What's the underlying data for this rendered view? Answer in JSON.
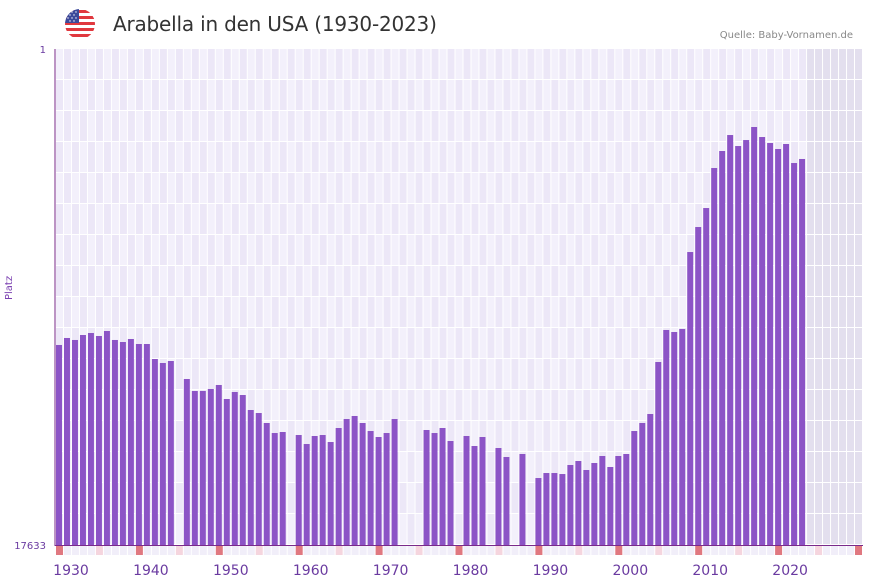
{
  "header": {
    "title": "Arabella in den USA (1930-2023)",
    "source": "Quelle: Baby-Vornamen.de",
    "flag_icon": "us-flag-icon"
  },
  "colors": {
    "bar": "#8c54c6",
    "axis": "#7a2a8a",
    "decade_marker": "#e07880",
    "half_decade_marker": "#f5d5de",
    "grid_bg_a": "#f3f0fb",
    "grid_bg_b": "#ece7f7",
    "future_zone": "#e3dfee"
  },
  "chart_data": {
    "type": "bar",
    "title": "Arabella in den USA (1930-2023)",
    "xlabel": "",
    "ylabel": "Platz",
    "y_inverted": true,
    "ylim": [
      1,
      17633
    ],
    "y_ticks": [
      "1",
      "17633"
    ],
    "x_ticks": [
      "1930",
      "1940",
      "1950",
      "1960",
      "1970",
      "1980",
      "1990",
      "2000",
      "2010",
      "2020"
    ],
    "x_range": [
      1930,
      2030
    ],
    "grid": true,
    "legend": "none",
    "x": [
      1930,
      1931,
      1932,
      1933,
      1934,
      1935,
      1936,
      1937,
      1938,
      1939,
      1940,
      1941,
      1942,
      1943,
      1944,
      1945,
      1946,
      1947,
      1948,
      1949,
      1950,
      1951,
      1952,
      1953,
      1954,
      1955,
      1956,
      1957,
      1958,
      1959,
      1960,
      1961,
      1962,
      1963,
      1964,
      1965,
      1966,
      1967,
      1968,
      1969,
      1970,
      1971,
      1972,
      1973,
      1974,
      1975,
      1976,
      1977,
      1978,
      1979,
      1980,
      1981,
      1982,
      1983,
      1984,
      1985,
      1986,
      1987,
      1988,
      1989,
      1990,
      1991,
      1992,
      1993,
      1994,
      1995,
      1996,
      1997,
      1998,
      1999,
      2000,
      2001,
      2002,
      2003,
      2004,
      2005,
      2006,
      2007,
      2008,
      2009,
      2010,
      2011,
      2012,
      2013,
      2014,
      2015,
      2016,
      2017,
      2018,
      2019,
      2020,
      2021,
      2022,
      2023
    ],
    "values": [
      10523,
      10274,
      10345,
      10168,
      10097,
      10203,
      10026,
      10345,
      10417,
      10310,
      10488,
      10488,
      11021,
      11163,
      11092,
      null,
      11732,
      12158,
      12158,
      12087,
      11945,
      12443,
      12194,
      12301,
      12834,
      12941,
      13296,
      13652,
      13616,
      null,
      13723,
      14043,
      13758,
      13723,
      13972,
      13474,
      13154,
      13047,
      13296,
      13581,
      13794,
      13652,
      13154,
      null,
      null,
      null,
      13545,
      13652,
      13474,
      13936,
      null,
      13758,
      14114,
      13794,
      null,
      14185,
      14505,
      null,
      14398,
      null,
      15252,
      15074,
      15074,
      15110,
      14789,
      14647,
      14967,
      14718,
      14469,
      14860,
      14469,
      14398,
      13581,
      13296,
      12976,
      11128,
      9990,
      10061,
      9955,
      7218,
      6329,
      5654,
      4232,
      3627,
      3059,
      3450,
      3237,
      2774,
      3130,
      3343,
      3556,
      3378,
      4054,
      3911
    ]
  }
}
